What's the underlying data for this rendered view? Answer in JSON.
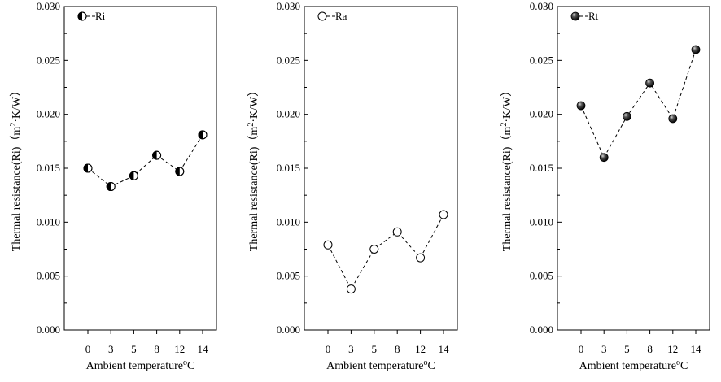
{
  "chart_data": [
    {
      "type": "line",
      "marker": "half-filled-circle",
      "line_style": "dashed",
      "x": [
        "0",
        "3",
        "5",
        "8",
        "12",
        "14"
      ],
      "series": [
        {
          "name": "Ri",
          "values": [
            0.015,
            0.0133,
            0.0143,
            0.0162,
            0.0147,
            0.0181
          ]
        }
      ],
      "xlabel": "Ambient temperature",
      "xlabel_unit": "oC",
      "ylabel": "Thermal resistance(Ri)",
      "ylabel_unit": "（m2·K/W）",
      "ylim": [
        0,
        0.03
      ],
      "yticks": [
        "0.000",
        "0.005",
        "0.010",
        "0.015",
        "0.020",
        "0.025",
        "0.030"
      ],
      "grid": false,
      "legend_position": "top-left"
    },
    {
      "type": "line",
      "marker": "open-circle",
      "line_style": "dashed",
      "x": [
        "0",
        "3",
        "5",
        "8",
        "12",
        "14"
      ],
      "series": [
        {
          "name": "Ra",
          "values": [
            0.0079,
            0.0038,
            0.0075,
            0.0091,
            0.0067,
            0.0107
          ]
        }
      ],
      "xlabel": "Ambient temperature",
      "xlabel_unit": "oC",
      "ylabel": "Thermal resistance(Ri)",
      "ylabel_unit": "（m2·K/W）",
      "ylim": [
        0,
        0.03
      ],
      "yticks": [
        "0.000",
        "0.005",
        "0.010",
        "0.015",
        "0.020",
        "0.025",
        "0.030"
      ],
      "grid": false,
      "legend_position": "top-left"
    },
    {
      "type": "line",
      "marker": "filled-sphere",
      "line_style": "dashed",
      "x": [
        "0",
        "3",
        "5",
        "8",
        "12",
        "14"
      ],
      "series": [
        {
          "name": "Rt",
          "values": [
            0.0208,
            0.016,
            0.0198,
            0.0229,
            0.0196,
            0.026
          ]
        }
      ],
      "xlabel": "Ambient temperature",
      "xlabel_unit": "oC",
      "ylabel": "Thermal resistance(Ri)",
      "ylabel_unit": "（m2·K/W）",
      "ylim": [
        0,
        0.03
      ],
      "yticks": [
        "0.000",
        "0.005",
        "0.010",
        "0.015",
        "0.020",
        "0.025",
        "0.030"
      ],
      "grid": false,
      "legend_position": "top-left"
    }
  ]
}
